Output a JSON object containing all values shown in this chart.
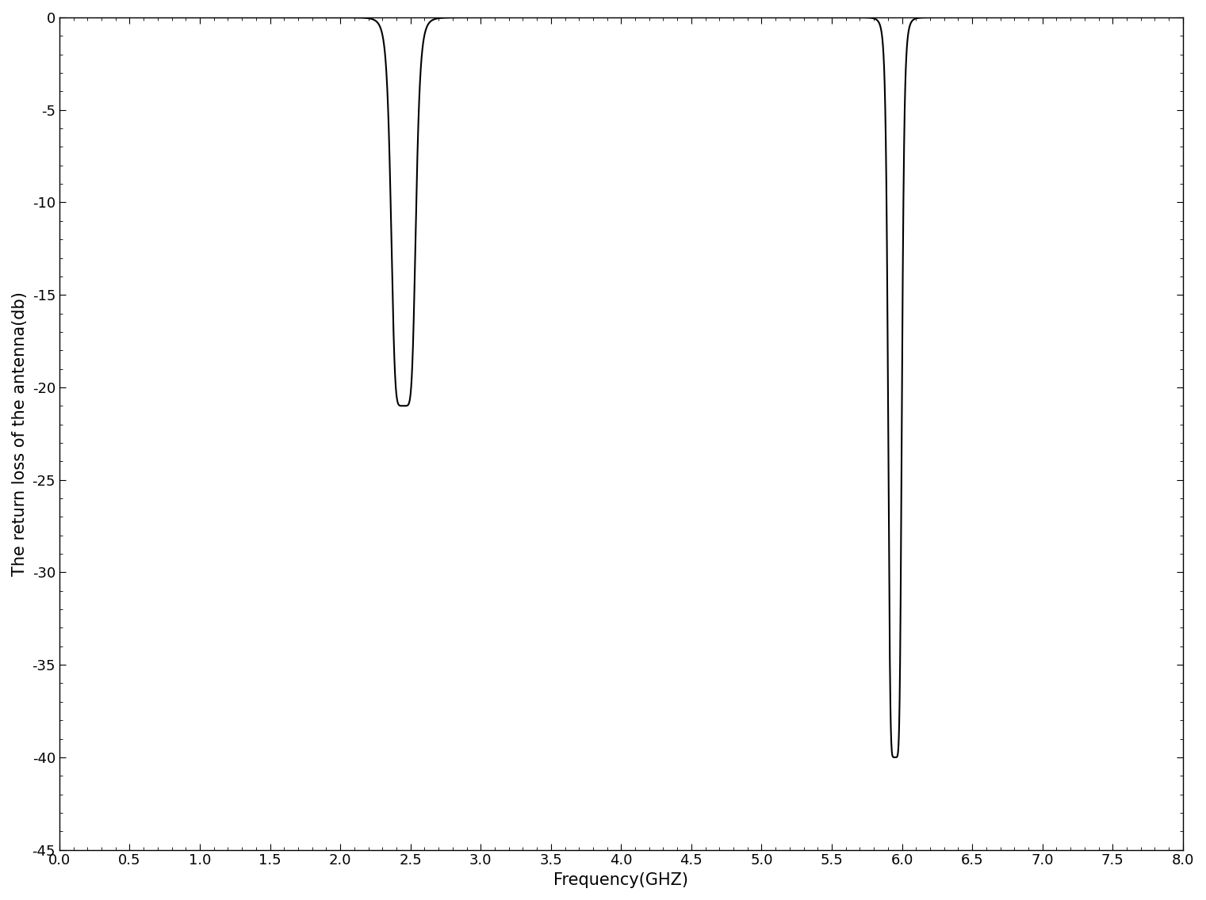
{
  "xlabel": "Frequency(GHZ)",
  "ylabel": "The return loss of the antenna(db)",
  "xlim": [
    0.0,
    8.0
  ],
  "ylim": [
    -45,
    0
  ],
  "xticks": [
    0.0,
    0.5,
    1.0,
    1.5,
    2.0,
    2.5,
    3.0,
    3.5,
    4.0,
    4.5,
    5.0,
    5.5,
    6.0,
    6.5,
    7.0,
    7.5,
    8.0
  ],
  "yticks": [
    0,
    -5,
    -10,
    -15,
    -20,
    -25,
    -30,
    -35,
    -40,
    -45
  ],
  "line_color": "#000000",
  "line_width": 1.5,
  "background_color": "#ffffff",
  "dip1_freq": 2.45,
  "dip1_depth": -21.0,
  "dip1_bw": 0.18,
  "dip2_freq": 5.95,
  "dip2_depth": -40.0,
  "dip2_bw": 0.1,
  "xlabel_fontsize": 15,
  "ylabel_fontsize": 15,
  "tick_fontsize": 13,
  "figure_width": 15.21,
  "figure_height": 11.36,
  "dpi": 100
}
